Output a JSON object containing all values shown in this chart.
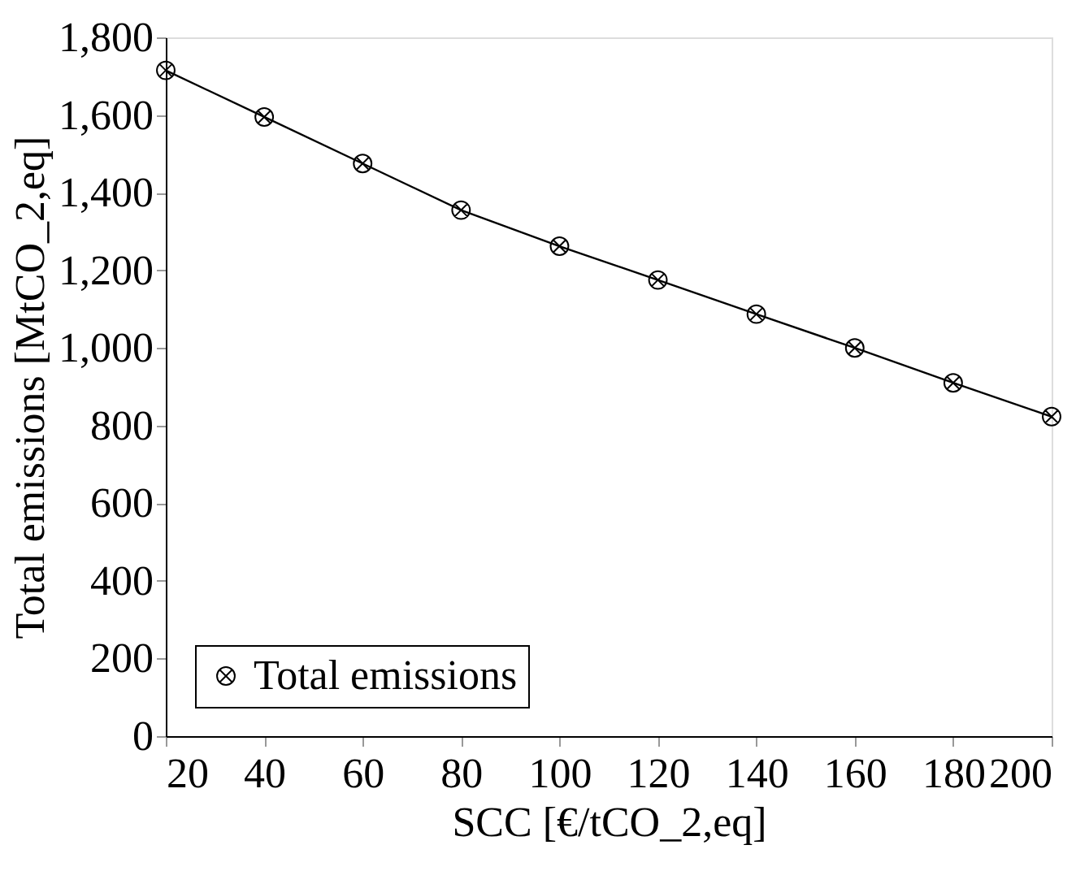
{
  "chart_data": {
    "type": "line",
    "xlabel": "SCC [€/tCO_2,eq]",
    "ylabel": "Total emissions [MtCO_2,eq]",
    "x": [
      20,
      40,
      60,
      80,
      100,
      120,
      140,
      160,
      180,
      200
    ],
    "series": [
      {
        "name": "Total emissions",
        "color": "#000000",
        "values": [
          1715,
          1595,
          1475,
          1355,
          1262,
          1175,
          1087,
          1000,
          910,
          823
        ]
      }
    ],
    "xlim": [
      20,
      200
    ],
    "xticks": [
      20,
      40,
      60,
      80,
      100,
      120,
      140,
      160,
      180,
      200
    ],
    "ylim": [
      0,
      1800
    ],
    "yticks": [
      0,
      200,
      400,
      600,
      800,
      {
        "value": 1000,
        "label": "1,000"
      },
      {
        "value": 1200,
        "label": "1,200"
      },
      {
        "value": 1400,
        "label": "1,400"
      },
      {
        "value": 1600,
        "label": "1,600"
      },
      {
        "value": 1800,
        "label": "1,800"
      }
    ],
    "grid": false,
    "legend": "bottom left",
    "marker": "cross",
    "line_style": "solid"
  }
}
